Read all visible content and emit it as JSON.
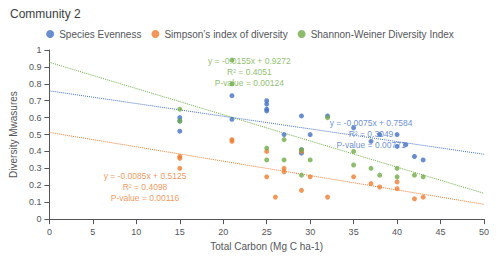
{
  "chart_data": {
    "type": "scatter",
    "title": "Community 2",
    "xlabel": "Total Carbon (Mg C ha-1)",
    "ylabel": "Diversity Mwasures",
    "xlim": [
      0,
      50
    ],
    "ylim": [
      0,
      1
    ],
    "xticks": [
      0,
      5,
      10,
      15,
      20,
      25,
      30,
      35,
      40,
      45,
      50
    ],
    "yticks": [
      0,
      0.1,
      0.2,
      0.3,
      0.4,
      0.5,
      0.6,
      0.7,
      0.8,
      0.9,
      1
    ],
    "grid": false,
    "legend": "top",
    "series": [
      {
        "name": "Species Evenness",
        "color": "#4472C4",
        "marker": "circle",
        "x": [
          15,
          15,
          15,
          21,
          21,
          25,
          25,
          25,
          25,
          27,
          29,
          29,
          29,
          30,
          32,
          35,
          37,
          38,
          40,
          40,
          41,
          42,
          43
        ],
        "values": [
          0.52,
          0.6,
          0.58,
          0.59,
          0.73,
          0.65,
          0.64,
          0.68,
          0.7,
          0.5,
          0.61,
          0.41,
          0.39,
          0.5,
          0.61,
          0.54,
          0.46,
          0.5,
          0.43,
          0.5,
          0.44,
          0.37,
          0.35
        ],
        "trendline": {
          "x": [
            0,
            50
          ],
          "values": [
            0.7584,
            0.3834
          ],
          "line_style": "dotted"
        },
        "annotation": {
          "text": [
            "y = -0.0075x + 0.7584",
            "R² = 0.3049",
            "P-value = 0.00771"
          ],
          "x": 37,
          "y": 0.6
        }
      },
      {
        "name": "Simpson’s index of diversity",
        "color": "#ED7D31",
        "marker": "circle",
        "x": [
          15,
          15,
          15,
          21,
          21,
          25,
          25,
          26,
          27,
          27,
          29,
          29,
          30,
          32,
          35,
          37,
          38,
          40,
          40,
          42,
          43
        ],
        "values": [
          0.3,
          0.37,
          0.36,
          0.47,
          0.46,
          0.25,
          0.4,
          0.13,
          0.3,
          0.28,
          0.17,
          0.4,
          0.25,
          0.13,
          0.25,
          0.21,
          0.19,
          0.22,
          0.18,
          0.12,
          0.13
        ],
        "trendline": {
          "x": [
            0,
            50
          ],
          "values": [
            0.5125,
            0.0875
          ],
          "line_style": "dotted"
        },
        "annotation": {
          "text": [
            "y = -0.0085x + 0.5125",
            "R² = 0.4098",
            "P-value = 0.00116"
          ],
          "x": 11,
          "y": 0.285
        }
      },
      {
        "name": "Shannon-Weiner Diversity Index",
        "color": "#70AD47",
        "marker": "circle",
        "x": [
          15,
          15,
          21,
          21,
          25,
          25,
          27,
          27,
          29,
          29,
          30,
          32,
          35,
          35,
          37,
          38,
          40,
          40,
          42,
          43
        ],
        "values": [
          0.58,
          0.65,
          0.94,
          0.8,
          0.35,
          0.42,
          0.47,
          0.35,
          0.41,
          0.26,
          0.35,
          0.6,
          0.4,
          0.32,
          0.3,
          0.26,
          0.25,
          0.3,
          0.26,
          0.25
        ],
        "trendline": {
          "x": [
            0,
            50
          ],
          "values": [
            0.9272,
            0.1522
          ],
          "line_style": "dotted"
        },
        "annotation": {
          "text": [
            "y = -0.0155x + 0.9272",
            "R² = 0.4051",
            "P-value = 0.00124"
          ],
          "x": 23,
          "y": 0.97
        }
      }
    ]
  }
}
